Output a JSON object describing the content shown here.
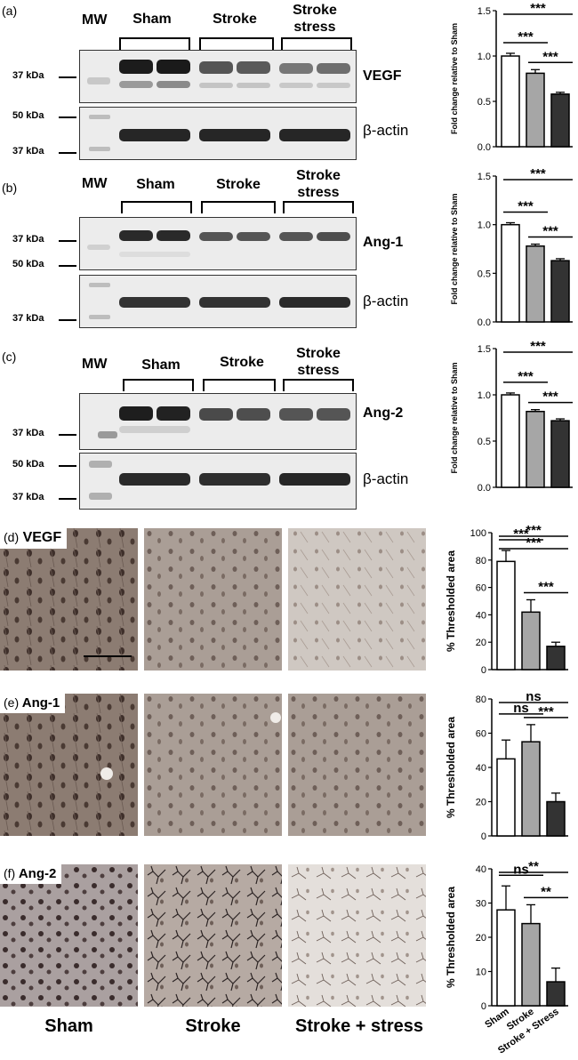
{
  "panel_letters": [
    "(a)",
    "(b)",
    "(c)",
    "(d)",
    "(e)",
    "(f)"
  ],
  "blots": [
    {
      "mw_label": "MW",
      "groups": [
        "Sham",
        "Stroke",
        "Stroke stress"
      ],
      "protein": "VEGF",
      "kda_top": "37 kDa",
      "kda_actin_upper": "50 kDa",
      "kda_actin_lower": "37 kDa",
      "loading": "β-actin"
    },
    {
      "mw_label": "MW",
      "groups": [
        "Sham",
        "Stroke",
        "Stroke stress"
      ],
      "protein": "Ang-1",
      "kda_top": "37 kDa",
      "kda_actin_upper": "50 kDa",
      "kda_actin_lower": "37 kDa",
      "loading": "β-actin"
    },
    {
      "mw_label": "MW",
      "groups": [
        "Sham",
        "Stroke",
        "Stroke stress"
      ],
      "protein": "Ang-2",
      "kda_top": "37 kDa",
      "kda_actin_upper": "50 kDa",
      "kda_actin_lower": "37 kDa",
      "loading": "β-actin"
    }
  ],
  "micrograph_tags": [
    "VEGF",
    "Ang-1",
    "Ang-2"
  ],
  "bottom_labels": [
    "Sham",
    "Stroke",
    "Stroke + stress"
  ],
  "colors": {
    "sham": "#ffffff",
    "stroke": "#a6a6a6",
    "stroke_stress": "#333333"
  },
  "chart_data": [
    {
      "type": "bar",
      "ylabel": "Fold change relative to Sham",
      "categories": [
        "Sham",
        "Stroke",
        "Stroke + Stress"
      ],
      "values": [
        1.0,
        0.81,
        0.58
      ],
      "errors": [
        0.03,
        0.04,
        0.02
      ],
      "ylim": [
        0,
        1.5
      ],
      "yticks": [
        "0.0",
        "0.5",
        "1.0",
        "1.5"
      ],
      "show_xlabels": false,
      "sig": [
        {
          "from": 0,
          "to": 2,
          "label": "***"
        },
        {
          "from": 0,
          "to": 1,
          "label": "***"
        },
        {
          "from": 1,
          "to": 2,
          "label": "***"
        }
      ]
    },
    {
      "type": "bar",
      "ylabel": "Fold change relative to Sham",
      "categories": [
        "Sham",
        "Stroke",
        "Stroke + Stress"
      ],
      "values": [
        1.0,
        0.78,
        0.63
      ],
      "errors": [
        0.02,
        0.02,
        0.02
      ],
      "ylim": [
        0,
        1.5
      ],
      "yticks": [
        "0.0",
        "0.5",
        "1.0",
        "1.5"
      ],
      "show_xlabels": false,
      "sig": [
        {
          "from": 0,
          "to": 2,
          "label": "***"
        },
        {
          "from": 0,
          "to": 1,
          "label": "***"
        },
        {
          "from": 1,
          "to": 2,
          "label": "***"
        }
      ]
    },
    {
      "type": "bar",
      "ylabel": "Fold change relative to Sham",
      "categories": [
        "Sham",
        "Stroke",
        "Stroke + Stress"
      ],
      "values": [
        1.0,
        0.82,
        0.72
      ],
      "errors": [
        0.02,
        0.02,
        0.02
      ],
      "ylim": [
        0,
        1.5
      ],
      "yticks": [
        "0.0",
        "0.5",
        "1.0",
        "1.5"
      ],
      "show_xlabels": false,
      "sig": [
        {
          "from": 0,
          "to": 2,
          "label": "***"
        },
        {
          "from": 0,
          "to": 1,
          "label": "***"
        },
        {
          "from": 1,
          "to": 2,
          "label": "***"
        }
      ]
    },
    {
      "type": "bar",
      "ylabel": "% Thresholded area",
      "categories": [
        "Sham",
        "Stroke",
        "Stroke + Stress"
      ],
      "values": [
        79,
        42,
        17
      ],
      "errors": [
        8,
        9,
        3
      ],
      "ylim": [
        0,
        100
      ],
      "yticks": [
        "0",
        "20",
        "40",
        "60",
        "80",
        "100"
      ],
      "show_xlabels": false,
      "sig": [
        {
          "from": 0,
          "to": 2,
          "label": "***"
        },
        {
          "from": 0,
          "to": 1,
          "label": "***"
        },
        {
          "from": 0,
          "to": 2,
          "label": "***"
        },
        {
          "from": 1,
          "to": 2,
          "label": "***"
        }
      ]
    },
    {
      "type": "bar",
      "ylabel": "% Thresholded area",
      "categories": [
        "Sham",
        "Stroke",
        "Stroke + Stress"
      ],
      "values": [
        45,
        55,
        20
      ],
      "errors": [
        11,
        10,
        5
      ],
      "ylim": [
        0,
        80
      ],
      "yticks": [
        "0",
        "20",
        "40",
        "60",
        "80"
      ],
      "show_xlabels": false,
      "sig": [
        {
          "from": 0,
          "to": 2,
          "label": "ns"
        },
        {
          "from": 0,
          "to": 1,
          "label": "ns"
        },
        {
          "from": 1,
          "to": 2,
          "label": "***"
        }
      ]
    },
    {
      "type": "bar",
      "ylabel": "% Thresholded area",
      "categories": [
        "Sham",
        "Stroke",
        "Stroke + Stress"
      ],
      "values": [
        28,
        24,
        7
      ],
      "errors": [
        7,
        5.5,
        4
      ],
      "ylim": [
        0,
        40
      ],
      "yticks": [
        "0",
        "10",
        "20",
        "30",
        "40"
      ],
      "show_xlabels": true,
      "sig": [
        {
          "from": 0,
          "to": 2,
          "label": "**"
        },
        {
          "from": 0,
          "to": 1,
          "label": "ns"
        },
        {
          "from": 1,
          "to": 2,
          "label": "**"
        }
      ]
    }
  ]
}
